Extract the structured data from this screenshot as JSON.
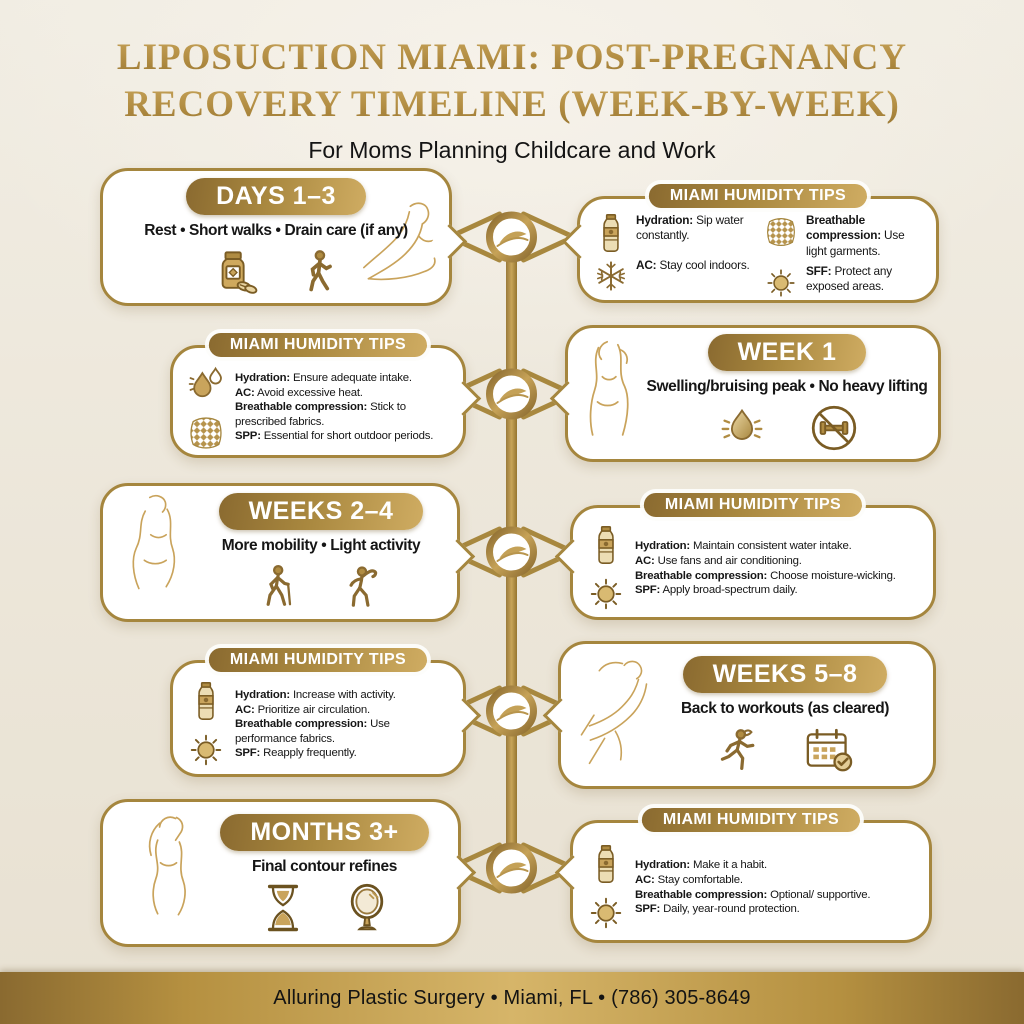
{
  "title": {
    "line1": "LIPOSUCTION MIAMI: POST-PREGNANCY",
    "line2": "RECOVERY TIMELINE (WEEK-BY-WEEK)",
    "subtitle": "For Moms Planning Childcare and Work"
  },
  "colors": {
    "gold_dark": "#8a6a30",
    "gold_mid": "#a9883f",
    "gold_light": "#cfac62",
    "background": "#ece6d9",
    "card_border": "#a5863e",
    "text": "#161616"
  },
  "timeline": {
    "node_icon": "leaf-swoosh-icon",
    "node_count": 5
  },
  "stages": [
    {
      "label": "DAYS 1–3",
      "text": "Rest • Short walks • Drain care (if any)",
      "icons": [
        "pill-bottle-icon",
        "walking-person-icon"
      ],
      "figure": "reclining-woman"
    },
    {
      "label": "WEEK 1",
      "text": "Swelling/bruising peak • No heavy lifting",
      "icons": [
        "water-drop-icon",
        "no-heavy-lifting-icon"
      ],
      "figure": "standing-woman"
    },
    {
      "label": "WEEKS 2–4",
      "text": "More mobility • Light activity",
      "icons": [
        "walking-cane-icon",
        "stretching-person-icon"
      ],
      "figure": "curvy-woman"
    },
    {
      "label": "WEEKS 5–8",
      "text": "Back to workouts (as cleared)",
      "icons": [
        "running-woman-icon",
        "calendar-check-icon"
      ],
      "figure": "runner-woman"
    },
    {
      "label": "MONTHS 3+",
      "text": "Final contour refines",
      "icons": [
        "hourglass-icon",
        "hand-mirror-icon"
      ],
      "figure": "posing-woman"
    }
  ],
  "tips_label": "MIAMI HUMIDITY TIPS",
  "tips_cards": [
    {
      "col1": [
        {
          "icon": "water-bottle-icon",
          "label": "Hydration:",
          "text": "Sip water constantly."
        },
        {
          "icon": "snowflake-icon",
          "label": "AC:",
          "text": "Stay cool indoors."
        }
      ],
      "col2": [
        {
          "icon": "fabric-mesh-icon",
          "label": "Breathable compression:",
          "text": "Use light garments."
        },
        {
          "icon": "sun-icon",
          "label": "SFF:",
          "text": "Protect any exposed areas."
        }
      ]
    },
    {
      "icons": [
        "water-drops-icon",
        "fabric-mesh-icon"
      ],
      "items": [
        {
          "label": "Hydration:",
          "text": "Ensure adequate intake."
        },
        {
          "label": "AC:",
          "text": "Avoid excessive heat."
        },
        {
          "label": "Breathable compression:",
          "text": "Stick to prescribed fabrics."
        },
        {
          "label": "SPP:",
          "text": "Essential for short outdoor periods."
        }
      ]
    },
    {
      "icons": [
        "water-bottle-icon",
        "sun-icon"
      ],
      "items": [
        {
          "label": "Hydration:",
          "text": "Maintain consistent water intake."
        },
        {
          "label": "AC:",
          "text": "Use fans and air conditioning."
        },
        {
          "label": "Breathable compression:",
          "text": "Choose moisture-wicking."
        },
        {
          "label": "SPF:",
          "text": "Apply broad-spectrum daily."
        }
      ]
    },
    {
      "icons": [
        "water-bottle-icon",
        "sun-icon"
      ],
      "items": [
        {
          "label": "Hydration:",
          "text": "Increase with activity."
        },
        {
          "label": "AC:",
          "text": "Prioritize air circulation."
        },
        {
          "label": "Breathable compression:",
          "text": "Use performance fabrics."
        },
        {
          "label": "SPF:",
          "text": "Reapply frequently."
        }
      ]
    },
    {
      "icons": [
        "water-bottle-icon",
        "sun-icon"
      ],
      "items": [
        {
          "label": "Hydration:",
          "text": "Make it a habit."
        },
        {
          "label": "AC:",
          "text": "Stay comfortable."
        },
        {
          "label": "Breathable compression:",
          "text": "Optional/ supportive."
        },
        {
          "label": "SPF:",
          "text": "Daily, year-round protection."
        }
      ]
    }
  ],
  "footer": {
    "text": "Alluring Plastic Surgery • Miami, FL • (786) 305-8649"
  }
}
